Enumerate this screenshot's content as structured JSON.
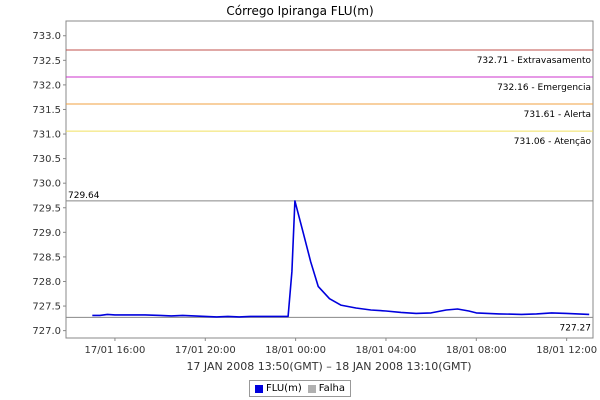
{
  "chart_data": {
    "type": "line",
    "title": "Córrego Ipiranga FLU(m)",
    "xlabel": "17 JAN 2008 13:50(GMT) – 18 JAN 2008 13:10(GMT)",
    "ylabel": "",
    "ylim": [
      726.85,
      733.3
    ],
    "xlim": [
      "2008-01-17 13:50",
      "2008-01-18 13:10"
    ],
    "yticks": [
      "727.0",
      "727.5",
      "728.0",
      "728.5",
      "729.0",
      "729.5",
      "730.0",
      "730.5",
      "731.0",
      "731.5",
      "732.0",
      "732.5",
      "733.0"
    ],
    "xticks": [
      "17/01 16:00",
      "17/01 20:00",
      "18/01 00:00",
      "18/01 04:00",
      "18/01 08:00",
      "18/01 12:00"
    ],
    "grid": false,
    "legend_position": "bottom",
    "thresholds": [
      {
        "value": 732.71,
        "label": "732.71 - Extravasamento",
        "color": "#c0504d"
      },
      {
        "value": 732.16,
        "label": "732.16 - Emergencia",
        "color": "#cc33cc"
      },
      {
        "value": 731.61,
        "label": "731.61 - Alerta",
        "color": "#f0a040"
      },
      {
        "value": 731.06,
        "label": "731.06 - Atenção",
        "color": "#f0e060"
      }
    ],
    "annotations": [
      {
        "label": "729.64",
        "value": 729.64
      },
      {
        "label": "727.27",
        "value": 727.27
      }
    ],
    "series": [
      {
        "name": "FLU(m)",
        "color": "#0000dd",
        "points": [
          [
            "2008-01-17 15:00",
            727.31
          ],
          [
            "2008-01-17 15:20",
            727.31
          ],
          [
            "2008-01-17 15:40",
            727.33
          ],
          [
            "2008-01-17 16:00",
            727.32
          ],
          [
            "2008-01-17 16:40",
            727.32
          ],
          [
            "2008-01-17 17:20",
            727.32
          ],
          [
            "2008-01-17 18:00",
            727.31
          ],
          [
            "2008-01-17 18:30",
            727.3
          ],
          [
            "2008-01-17 19:00",
            727.31
          ],
          [
            "2008-01-17 19:30",
            727.3
          ],
          [
            "2008-01-17 20:00",
            727.29
          ],
          [
            "2008-01-17 20:30",
            727.28
          ],
          [
            "2008-01-17 21:00",
            727.29
          ],
          [
            "2008-01-17 21:30",
            727.28
          ],
          [
            "2008-01-17 22:00",
            727.29
          ],
          [
            "2008-01-17 22:30",
            727.29
          ],
          [
            "2008-01-17 23:00",
            727.29
          ],
          [
            "2008-01-17 23:40",
            727.29
          ],
          [
            "2008-01-17 23:50",
            728.2
          ],
          [
            "2008-01-17 23:58",
            729.64
          ],
          [
            "2008-01-18 00:20",
            729.0
          ],
          [
            "2008-01-18 00:40",
            728.4
          ],
          [
            "2008-01-18 01:00",
            727.9
          ],
          [
            "2008-01-18 01:30",
            727.65
          ],
          [
            "2008-01-18 02:00",
            727.52
          ],
          [
            "2008-01-18 02:40",
            727.46
          ],
          [
            "2008-01-18 03:20",
            727.42
          ],
          [
            "2008-01-18 04:00",
            727.4
          ],
          [
            "2008-01-18 04:40",
            727.37
          ],
          [
            "2008-01-18 05:20",
            727.35
          ],
          [
            "2008-01-18 06:00",
            727.36
          ],
          [
            "2008-01-18 06:40",
            727.42
          ],
          [
            "2008-01-18 07:10",
            727.44
          ],
          [
            "2008-01-18 07:40",
            727.4
          ],
          [
            "2008-01-18 08:00",
            727.36
          ],
          [
            "2008-01-18 09:00",
            727.34
          ],
          [
            "2008-01-18 10:00",
            727.33
          ],
          [
            "2008-01-18 10:40",
            727.34
          ],
          [
            "2008-01-18 11:20",
            727.36
          ],
          [
            "2008-01-18 12:00",
            727.35
          ],
          [
            "2008-01-18 12:30",
            727.34
          ],
          [
            "2008-01-18 13:00",
            727.33
          ]
        ]
      },
      {
        "name": "Falha",
        "color": "#b0b0b0",
        "points": []
      }
    ]
  }
}
